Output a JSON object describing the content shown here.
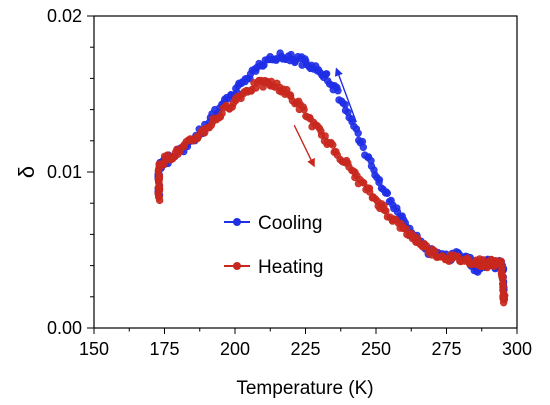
{
  "chart_data": {
    "type": "scatter",
    "xlabel": "Temperature (K)",
    "ylabel": "δ",
    "xlim": [
      150,
      300
    ],
    "ylim": [
      0,
      0.02
    ],
    "x_ticks": [
      "150",
      "175",
      "200",
      "225",
      "250",
      "275",
      "300"
    ],
    "y_ticks": [
      "0.00",
      "0.01",
      "0.02"
    ],
    "grid": false,
    "legend_position": "center-left",
    "series": [
      {
        "name": "Cooling",
        "color": "#1f2fe6",
        "points": [
          [
            295.5,
            0.0018
          ],
          [
            295.2,
            0.003
          ],
          [
            294.8,
            0.004
          ],
          [
            294,
            0.0041
          ],
          [
            292,
            0.004
          ],
          [
            290,
            0.0042
          ],
          [
            288,
            0.0041
          ],
          [
            286,
            0.0036
          ],
          [
            284,
            0.0042
          ],
          [
            282,
            0.0047
          ],
          [
            279,
            0.0047
          ],
          [
            276,
            0.0045
          ],
          [
            272,
            0.0046
          ],
          [
            268,
            0.005
          ],
          [
            264,
            0.0058
          ],
          [
            260,
            0.0068
          ],
          [
            256,
            0.008
          ],
          [
            252,
            0.0092
          ],
          [
            248,
            0.0105
          ],
          [
            244,
            0.0122
          ],
          [
            240,
            0.0138
          ],
          [
            236,
            0.0152
          ],
          [
            232,
            0.0162
          ],
          [
            228,
            0.0168
          ],
          [
            224,
            0.0171
          ],
          [
            220,
            0.0173
          ],
          [
            216,
            0.0174
          ],
          [
            212,
            0.0172
          ],
          [
            208,
            0.0167
          ],
          [
            204,
            0.016
          ],
          [
            200,
            0.0152
          ],
          [
            196,
            0.0144
          ],
          [
            192,
            0.0135
          ],
          [
            188,
            0.0126
          ],
          [
            184,
            0.0119
          ],
          [
            180,
            0.0113
          ],
          [
            176,
            0.0108
          ],
          [
            174,
            0.0105
          ],
          [
            173.2,
            0.0104
          ],
          [
            173,
            0.0098
          ],
          [
            173,
            0.009
          ],
          [
            173,
            0.0084
          ]
        ]
      },
      {
        "name": "Heating",
        "color": "#c8281e",
        "points": [
          [
            173,
            0.0082
          ],
          [
            173,
            0.009
          ],
          [
            173,
            0.0098
          ],
          [
            173.2,
            0.0105
          ],
          [
            176,
            0.0109
          ],
          [
            180,
            0.0113
          ],
          [
            184,
            0.0119
          ],
          [
            188,
            0.0125
          ],
          [
            192,
            0.0132
          ],
          [
            196,
            0.0139
          ],
          [
            200,
            0.0146
          ],
          [
            204,
            0.0152
          ],
          [
            208,
            0.0156
          ],
          [
            212,
            0.0157
          ],
          [
            216,
            0.0154
          ],
          [
            220,
            0.0148
          ],
          [
            224,
            0.014
          ],
          [
            228,
            0.013
          ],
          [
            232,
            0.0121
          ],
          [
            236,
            0.0113
          ],
          [
            240,
            0.0104
          ],
          [
            244,
            0.0095
          ],
          [
            248,
            0.0086
          ],
          [
            252,
            0.0078
          ],
          [
            256,
            0.007
          ],
          [
            260,
            0.0063
          ],
          [
            264,
            0.0057
          ],
          [
            268,
            0.0051
          ],
          [
            272,
            0.0047
          ],
          [
            276,
            0.0045
          ],
          [
            280,
            0.0044
          ],
          [
            284,
            0.0043
          ],
          [
            287,
            0.0042
          ],
          [
            289,
            0.0041
          ],
          [
            291,
            0.0042
          ],
          [
            293,
            0.0042
          ],
          [
            294.5,
            0.004
          ],
          [
            295,
            0.003
          ],
          [
            295.3,
            0.0022
          ],
          [
            295.5,
            0.0017
          ]
        ]
      }
    ],
    "arrows": [
      {
        "series": "Cooling",
        "from": [
          243,
          0.0132
        ],
        "to": [
          236,
          0.0166
        ]
      },
      {
        "series": "Heating",
        "from": [
          221,
          0.013
        ],
        "to": [
          228,
          0.0104
        ]
      }
    ]
  }
}
